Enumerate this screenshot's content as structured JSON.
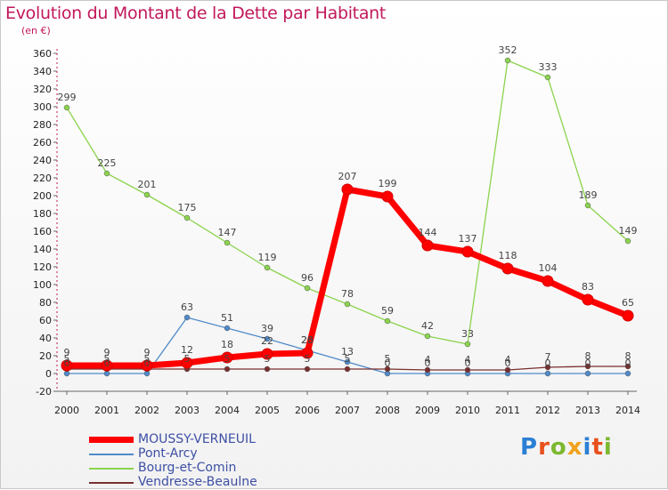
{
  "title": "Evolution du Montant de la Dette par Habitant",
  "subtitle": "(en €)",
  "logo": "Proxiti",
  "chart_data": {
    "type": "line",
    "x": [
      2000,
      2001,
      2002,
      2003,
      2004,
      2005,
      2006,
      2007,
      2008,
      2009,
      2010,
      2011,
      2012,
      2013,
      2014
    ],
    "ylim": [
      -20,
      360
    ],
    "yticks": [
      -20,
      0,
      20,
      40,
      60,
      80,
      100,
      120,
      140,
      160,
      180,
      200,
      220,
      240,
      260,
      280,
      300,
      320,
      340,
      360
    ],
    "grid": false,
    "legend_position": "bottom-left",
    "series": [
      {
        "name": "MOUSSY-VERNEUIL",
        "color": "#ff0000",
        "values": [
          9,
          9,
          9,
          12,
          18,
          22,
          23,
          207,
          199,
          144,
          137,
          118,
          104,
          83,
          65
        ],
        "labels": [
          "9",
          "9",
          "9",
          "12",
          "18",
          "22",
          "23",
          "207",
          "199",
          "144",
          "137",
          "118",
          "104",
          "83",
          "65"
        ]
      },
      {
        "name": "Pont-Arcy",
        "color": "#4f8ac9",
        "values": [
          0,
          0,
          0,
          63,
          51,
          39,
          26,
          13,
          0,
          0,
          0,
          0,
          0,
          0,
          0
        ],
        "labels": [
          "0",
          "0",
          "0",
          "63",
          "51",
          "39",
          "26",
          "13",
          "0",
          "0",
          "0",
          "0",
          "0",
          "0",
          "0"
        ]
      },
      {
        "name": "Bourg-et-Comin",
        "color": "#8bd34d",
        "values": [
          299,
          225,
          201,
          175,
          147,
          119,
          96,
          78,
          59,
          42,
          33,
          352,
          333,
          189,
          149
        ],
        "labels": [
          "299",
          "225",
          "201",
          "175",
          "147",
          "119",
          "96",
          "78",
          "59",
          "42",
          "33",
          "352",
          "333",
          "189",
          "149"
        ]
      },
      {
        "name": "Vendresse-Beaulne",
        "color": "#7a2f2f",
        "values": [
          5,
          5,
          5,
          5,
          5,
          5,
          5,
          5,
          5,
          4,
          4,
          4,
          7,
          8,
          8
        ],
        "labels": [
          "5",
          "5",
          "5",
          "5",
          "5",
          "5",
          "5",
          "5",
          "5",
          "4",
          "4",
          "4",
          "7",
          "8",
          "8"
        ]
      }
    ]
  }
}
